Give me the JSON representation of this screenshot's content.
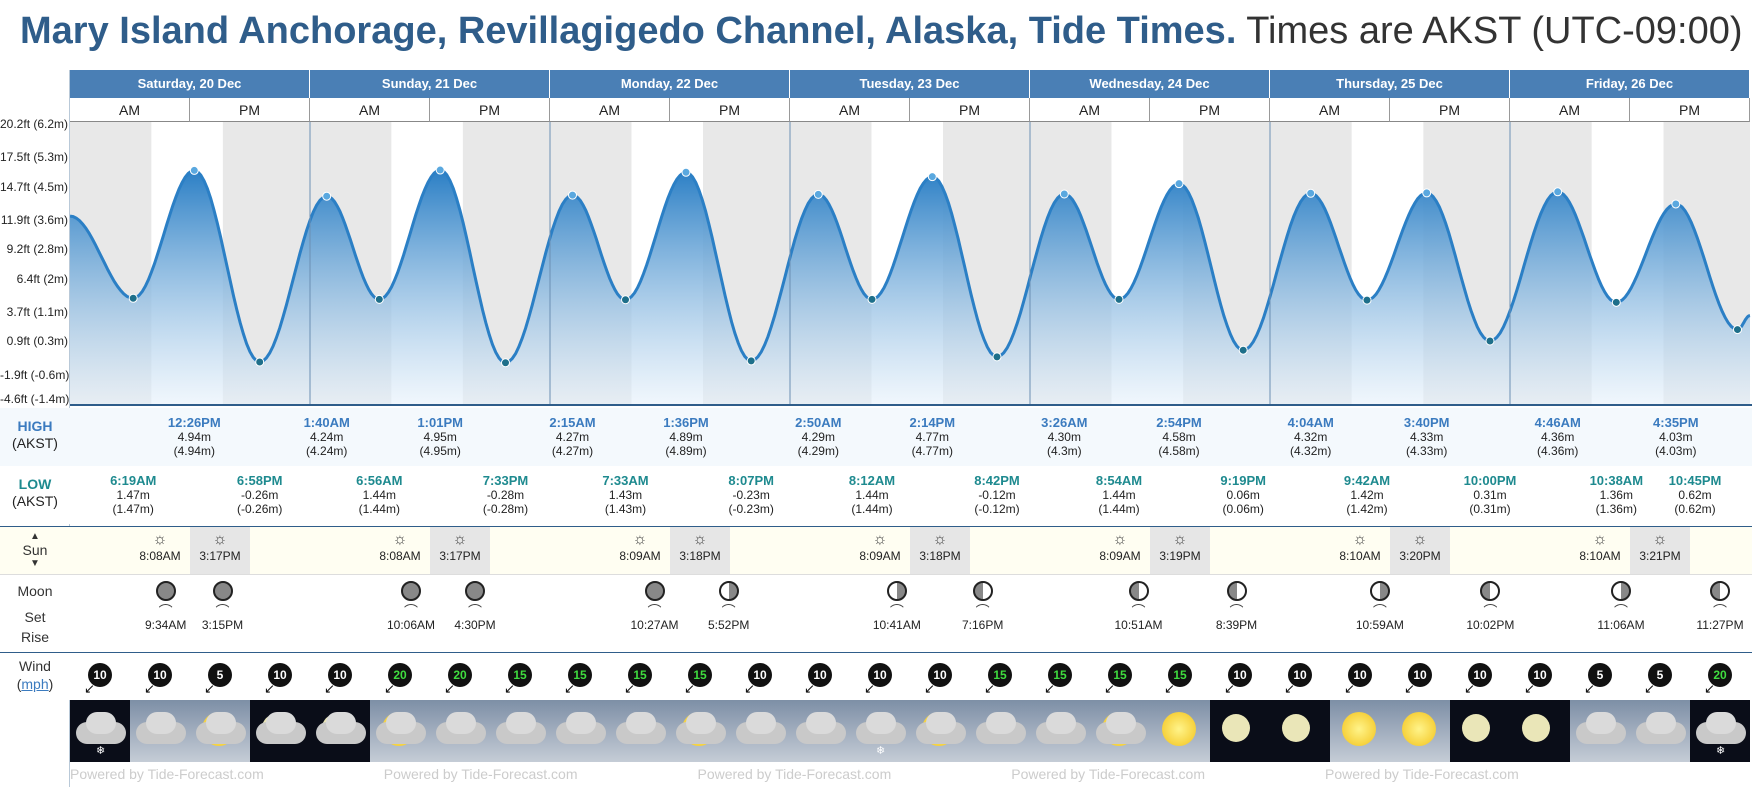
{
  "header": {
    "title_bold": "Mary Island Anchorage, Revillagigedo Channel, Alaska, Tide Times.",
    "title_tz": "Times are AKST (UTC-09:00)"
  },
  "labels": {
    "high": "HIGH",
    "low": "LOW",
    "tz": "(AKST)",
    "sun": "Sun",
    "moon": "Moon",
    "set": "Set",
    "rise": "Rise",
    "wind": "Wind",
    "wind_unit": "mph",
    "am": "AM",
    "pm": "PM",
    "footer": "Powered by Tide-Forecast.com"
  },
  "days": [
    "Saturday, 20 Dec",
    "Sunday, 21 Dec",
    "Monday, 22 Dec",
    "Tuesday, 23 Dec",
    "Wednesday, 24 Dec",
    "Thursday, 25 Dec",
    "Friday, 26 Dec"
  ],
  "y_axis_ticks": [
    "20.2ft (6.2m)",
    "17.5ft (5.3m)",
    "14.7ft (4.5m)",
    "11.9ft (3.6m)",
    "9.2ft (2.8m)",
    "6.4ft (2m)",
    "3.7ft (1.1m)",
    "0.9ft (0.3m)",
    "-1.9ft (-0.6m)",
    "-4.6ft (-1.4m)"
  ],
  "highs": [
    {
      "time": "12:26PM",
      "m": "4.94m",
      "alt": "(4.94m)"
    },
    {
      "time": "1:40AM",
      "m": "4.24m",
      "alt": "(4.24m)"
    },
    {
      "time": "1:01PM",
      "m": "4.95m",
      "alt": "(4.95m)"
    },
    {
      "time": "2:15AM",
      "m": "4.27m",
      "alt": "(4.27m)"
    },
    {
      "time": "1:36PM",
      "m": "4.89m",
      "alt": "(4.89m)"
    },
    {
      "time": "2:50AM",
      "m": "4.29m",
      "alt": "(4.29m)"
    },
    {
      "time": "2:14PM",
      "m": "4.77m",
      "alt": "(4.77m)"
    },
    {
      "time": "3:26AM",
      "m": "4.30m",
      "alt": "(4.3m)"
    },
    {
      "time": "2:54PM",
      "m": "4.58m",
      "alt": "(4.58m)"
    },
    {
      "time": "4:04AM",
      "m": "4.32m",
      "alt": "(4.32m)"
    },
    {
      "time": "3:40PM",
      "m": "4.33m",
      "alt": "(4.33m)"
    },
    {
      "time": "4:46AM",
      "m": "4.36m",
      "alt": "(4.36m)"
    },
    {
      "time": "4:35PM",
      "m": "4.03m",
      "alt": "(4.03m)"
    }
  ],
  "lows": [
    {
      "time": "6:19AM",
      "m": "1.47m",
      "alt": "(1.47m)"
    },
    {
      "time": "6:58PM",
      "m": "-0.26m",
      "alt": "(-0.26m)"
    },
    {
      "time": "6:56AM",
      "m": "1.44m",
      "alt": "(1.44m)"
    },
    {
      "time": "7:33PM",
      "m": "-0.28m",
      "alt": "(-0.28m)"
    },
    {
      "time": "7:33AM",
      "m": "1.43m",
      "alt": "(1.43m)"
    },
    {
      "time": "8:07PM",
      "m": "-0.23m",
      "alt": "(-0.23m)"
    },
    {
      "time": "8:12AM",
      "m": "1.44m",
      "alt": "(1.44m)"
    },
    {
      "time": "8:42PM",
      "m": "-0.12m",
      "alt": "(-0.12m)"
    },
    {
      "time": "8:54AM",
      "m": "1.44m",
      "alt": "(1.44m)"
    },
    {
      "time": "9:19PM",
      "m": "0.06m",
      "alt": "(0.06m)"
    },
    {
      "time": "9:42AM",
      "m": "1.42m",
      "alt": "(1.42m)"
    },
    {
      "time": "10:00PM",
      "m": "0.31m",
      "alt": "(0.31m)"
    },
    {
      "time": "10:38AM",
      "m": "1.36m",
      "alt": "(1.36m)"
    },
    {
      "time": "10:45PM",
      "m": "0.62m",
      "alt": "(0.62m)"
    }
  ],
  "sun": [
    {
      "rise": "8:08AM",
      "set": "3:17PM"
    },
    {
      "rise": "8:08AM",
      "set": "3:17PM"
    },
    {
      "rise": "8:09AM",
      "set": "3:18PM"
    },
    {
      "rise": "8:09AM",
      "set": "3:18PM"
    },
    {
      "rise": "8:09AM",
      "set": "3:19PM"
    },
    {
      "rise": "8:10AM",
      "set": "3:20PM"
    },
    {
      "rise": "8:10AM",
      "set": "3:21PM"
    }
  ],
  "moon": [
    {
      "time": "9:34AM",
      "kind": "set"
    },
    {
      "time": "3:15PM",
      "kind": "rise"
    },
    {
      "time": "10:06AM",
      "kind": "set"
    },
    {
      "time": "4:30PM",
      "kind": "rise"
    },
    {
      "time": "10:27AM",
      "kind": "set"
    },
    {
      "time": "5:52PM",
      "kind": "rise"
    },
    {
      "time": "10:41AM",
      "kind": "set"
    },
    {
      "time": "7:16PM",
      "kind": "rise"
    },
    {
      "time": "10:51AM",
      "kind": "set"
    },
    {
      "time": "8:39PM",
      "kind": "rise"
    },
    {
      "time": "10:59AM",
      "kind": "set"
    },
    {
      "time": "10:02PM",
      "kind": "rise"
    },
    {
      "time": "11:06AM",
      "kind": "set"
    },
    {
      "time": "11:27PM",
      "kind": "rise"
    }
  ],
  "wind": [
    10,
    10,
    5,
    10,
    10,
    20,
    20,
    15,
    15,
    15,
    15,
    10,
    10,
    10,
    10,
    15,
    15,
    15,
    15,
    10,
    10,
    10,
    10,
    10,
    10,
    5,
    5,
    20
  ],
  "weather_icons": [
    "night-cloud-snow",
    "cloud",
    "sun-cloud",
    "moon-cloud",
    "moon-cloud",
    "sun-cloud",
    "cloud",
    "cloud",
    "cloud",
    "cloud",
    "sun-cloud",
    "cloud",
    "cloud",
    "cloud-snow",
    "sun-cloud",
    "cloud",
    "cloud",
    "sun-cloud",
    "sun",
    "moon",
    "moon",
    "sun",
    "sun",
    "moon",
    "moon",
    "cloud",
    "cloud",
    "night-cloud-snow"
  ],
  "chart_data": {
    "type": "area",
    "ylabel": "",
    "y_unit": "m",
    "ylim": [
      -1.4,
      6.2
    ],
    "x_unit": "hours",
    "series": [
      {
        "points": [
          [
            0.0,
            3.7
          ],
          [
            6.32,
            1.47
          ],
          [
            12.43,
            4.94
          ],
          [
            18.97,
            -0.26
          ],
          [
            25.67,
            4.24
          ],
          [
            30.93,
            1.44
          ],
          [
            37.02,
            4.95
          ],
          [
            43.55,
            -0.28
          ],
          [
            50.25,
            4.27
          ],
          [
            55.55,
            1.43
          ],
          [
            61.6,
            4.89
          ],
          [
            68.12,
            -0.23
          ],
          [
            74.83,
            4.29
          ],
          [
            80.2,
            1.44
          ],
          [
            86.23,
            4.77
          ],
          [
            92.7,
            -0.12
          ],
          [
            99.43,
            4.3
          ],
          [
            104.9,
            1.44
          ],
          [
            110.9,
            4.58
          ],
          [
            117.32,
            0.06
          ],
          [
            124.07,
            4.32
          ],
          [
            129.7,
            1.42
          ],
          [
            135.67,
            4.33
          ],
          [
            142.0,
            0.31
          ],
          [
            148.77,
            4.36
          ],
          [
            154.63,
            1.36
          ],
          [
            160.58,
            4.03
          ],
          [
            166.75,
            0.62
          ],
          [
            168.0,
            1.0
          ]
        ]
      }
    ]
  }
}
